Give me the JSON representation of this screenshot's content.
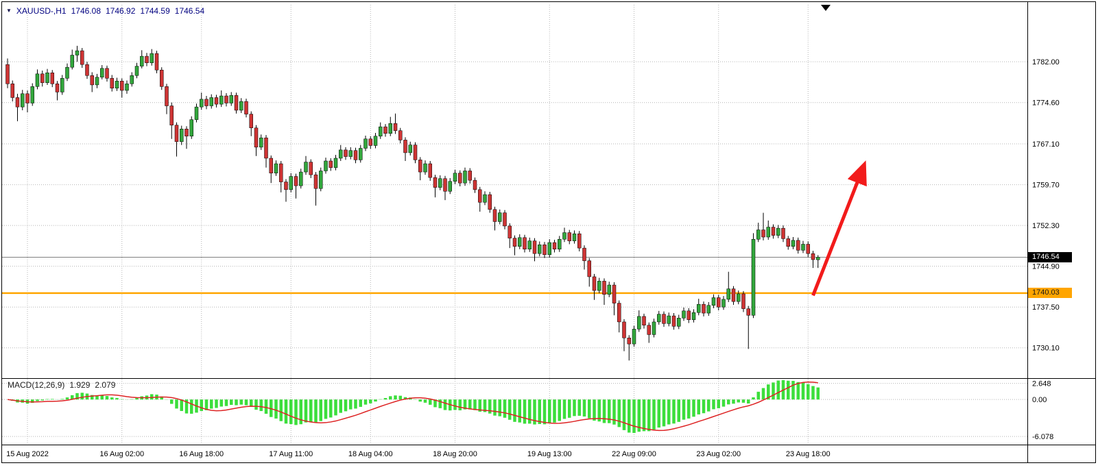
{
  "header": {
    "symbol_period": "XAUUSD-,H1",
    "open": "1746.08",
    "high": "1746.92",
    "low": "1744.59",
    "close": "1746.54"
  },
  "chart_data": {
    "type": "candlestick",
    "symbol": "XAUUSD",
    "timeframe": "H1",
    "grid": "dotted",
    "price_axis": {
      "range": [
        1724.6,
        1789.6
      ],
      "ticks": [
        {
          "text": "1782.00",
          "value": 1782.0
        },
        {
          "text": "1774.60",
          "value": 1774.6
        },
        {
          "text": "1767.10",
          "value": 1767.1
        },
        {
          "text": "1759.70",
          "value": 1759.7
        },
        {
          "text": "1752.30",
          "value": 1752.3
        },
        {
          "text": "1744.90",
          "value": 1744.9
        },
        {
          "text": "1737.50",
          "value": 1737.5
        },
        {
          "text": "1730.10",
          "value": 1730.1
        }
      ]
    },
    "current_price": {
      "text": "1746.54",
      "value": 1746.54
    },
    "hline": {
      "text": "1740.03",
      "value": 1740.03,
      "color": "#FFA500"
    },
    "x_labels": [
      {
        "text": "15 Aug 2022",
        "bar": 4
      },
      {
        "text": "16 Aug 02:00",
        "bar": 23
      },
      {
        "text": "16 Aug 18:00",
        "bar": 39
      },
      {
        "text": "17 Aug 11:00",
        "bar": 57
      },
      {
        "text": "18 Aug 04:00",
        "bar": 73
      },
      {
        "text": "18 Aug 20:00",
        "bar": 90
      },
      {
        "text": "19 Aug 13:00",
        "bar": 109
      },
      {
        "text": "22 Aug 09:00",
        "bar": 126
      },
      {
        "text": "23 Aug 02:00",
        "bar": 143
      },
      {
        "text": "23 Aug 18:00",
        "bar": 161
      }
    ],
    "macd": {
      "title": "MACD(12,26,9)",
      "main_value": "1.929",
      "signal_value": "2.079",
      "params": {
        "fast": 12,
        "slow": 26,
        "signal": 9
      },
      "range": [
        -7.3,
        3.4
      ],
      "ticks": [
        {
          "text": "2.648",
          "value": 2.648
        },
        {
          "text": "0.00",
          "value": 0
        },
        {
          "text": "-6.078",
          "value": -6.078
        }
      ]
    },
    "annotation_arrow": {
      "from_bar": 162,
      "from_price": 1739.6,
      "to_bar": 171.5,
      "to_price": 1761.5,
      "color": "#F21B1B"
    },
    "colors": {
      "bull": "#32A63C",
      "bear": "#CE3434",
      "wick": "#000000",
      "grid": "#B4B4B4",
      "macd_hist": "#3CDE3C",
      "macd_signal": "#DD2222",
      "current_line": "#808080"
    },
    "candles": [
      [
        1781.5,
        1782.6,
        1777.2,
        1778.0
      ],
      [
        1778.0,
        1778.6,
        1774.8,
        1775.5
      ],
      [
        1775.5,
        1776.2,
        1771.2,
        1773.8
      ],
      [
        1773.8,
        1776.9,
        1773.2,
        1776.2
      ],
      [
        1776.2,
        1776.8,
        1772.8,
        1774.5
      ],
      [
        1774.5,
        1778.1,
        1774.0,
        1777.5
      ],
      [
        1777.5,
        1780.6,
        1777.0,
        1779.8
      ],
      [
        1779.8,
        1780.4,
        1777.5,
        1778.2
      ],
      [
        1778.2,
        1780.7,
        1777.8,
        1780.0
      ],
      [
        1780.0,
        1780.5,
        1777.4,
        1778.0
      ],
      [
        1778.0,
        1778.5,
        1775.0,
        1776.5
      ],
      [
        1776.5,
        1779.6,
        1776.0,
        1779.0
      ],
      [
        1779.0,
        1781.7,
        1778.5,
        1781.0
      ],
      [
        1781.0,
        1784.2,
        1780.6,
        1783.2
      ],
      [
        1783.2,
        1784.9,
        1782.0,
        1784.0
      ],
      [
        1784.0,
        1784.5,
        1780.9,
        1781.5
      ],
      [
        1781.5,
        1782.0,
        1778.9,
        1779.5
      ],
      [
        1779.5,
        1780.1,
        1776.5,
        1777.8
      ],
      [
        1777.8,
        1779.8,
        1777.2,
        1779.2
      ],
      [
        1779.2,
        1781.4,
        1778.8,
        1780.8
      ],
      [
        1780.8,
        1781.3,
        1778.4,
        1779.0
      ],
      [
        1779.0,
        1779.6,
        1776.6,
        1777.2
      ],
      [
        1777.2,
        1779.1,
        1776.7,
        1778.5
      ],
      [
        1778.5,
        1779.0,
        1775.5,
        1776.8
      ],
      [
        1776.8,
        1778.6,
        1776.2,
        1778.0
      ],
      [
        1778.0,
        1780.1,
        1777.5,
        1779.5
      ],
      [
        1779.5,
        1781.8,
        1779.0,
        1781.2
      ],
      [
        1781.2,
        1784.1,
        1780.8,
        1783.0
      ],
      [
        1783.0,
        1783.6,
        1781.2,
        1781.8
      ],
      [
        1781.8,
        1784.3,
        1781.3,
        1783.5
      ],
      [
        1783.5,
        1784.0,
        1779.9,
        1780.5
      ],
      [
        1780.5,
        1781.0,
        1776.9,
        1777.5
      ],
      [
        1777.5,
        1778.0,
        1772.5,
        1774.0
      ],
      [
        1774.0,
        1774.6,
        1768.0,
        1770.5
      ],
      [
        1770.5,
        1771.0,
        1764.8,
        1767.5
      ],
      [
        1767.5,
        1770.4,
        1766.9,
        1769.8
      ],
      [
        1769.8,
        1770.3,
        1766.2,
        1768.5
      ],
      [
        1768.5,
        1772.1,
        1768.0,
        1771.5
      ],
      [
        1771.5,
        1774.4,
        1771.0,
        1773.8
      ],
      [
        1773.8,
        1776.4,
        1773.3,
        1775.2
      ],
      [
        1775.2,
        1775.8,
        1773.4,
        1774.0
      ],
      [
        1774.0,
        1776.1,
        1773.5,
        1775.5
      ],
      [
        1775.5,
        1776.0,
        1773.7,
        1774.3
      ],
      [
        1774.3,
        1776.8,
        1773.8,
        1775.8
      ],
      [
        1775.8,
        1776.3,
        1773.9,
        1774.5
      ],
      [
        1774.5,
        1776.5,
        1774.0,
        1775.9
      ],
      [
        1775.9,
        1776.4,
        1772.6,
        1773.2
      ],
      [
        1773.2,
        1775.4,
        1772.7,
        1774.8
      ],
      [
        1774.8,
        1775.3,
        1771.9,
        1772.5
      ],
      [
        1772.5,
        1773.0,
        1768.5,
        1770.0
      ],
      [
        1770.0,
        1770.5,
        1764.9,
        1766.5
      ],
      [
        1766.5,
        1768.8,
        1766.0,
        1768.2
      ],
      [
        1768.2,
        1768.7,
        1762.8,
        1764.5
      ],
      [
        1764.5,
        1765.0,
        1760.0,
        1761.8
      ],
      [
        1761.8,
        1764.1,
        1761.3,
        1763.5
      ],
      [
        1763.5,
        1764.0,
        1758.3,
        1760.2
      ],
      [
        1760.2,
        1760.7,
        1756.6,
        1758.8
      ],
      [
        1758.8,
        1761.8,
        1758.3,
        1761.2
      ],
      [
        1761.2,
        1761.7,
        1757.2,
        1759.5
      ],
      [
        1759.5,
        1762.6,
        1759.0,
        1762.0
      ],
      [
        1762.0,
        1764.9,
        1761.5,
        1763.8
      ],
      [
        1763.8,
        1764.3,
        1760.9,
        1761.5
      ],
      [
        1761.5,
        1762.0,
        1755.9,
        1759.0
      ],
      [
        1759.0,
        1762.8,
        1758.5,
        1762.2
      ],
      [
        1762.2,
        1764.6,
        1761.7,
        1764.0
      ],
      [
        1764.0,
        1764.5,
        1762.2,
        1762.8
      ],
      [
        1762.8,
        1765.1,
        1762.3,
        1764.5
      ],
      [
        1764.5,
        1766.9,
        1764.0,
        1766.0
      ],
      [
        1766.0,
        1766.5,
        1764.2,
        1764.8
      ],
      [
        1764.8,
        1766.5,
        1764.3,
        1765.9
      ],
      [
        1765.9,
        1766.4,
        1763.6,
        1764.2
      ],
      [
        1764.2,
        1766.9,
        1763.7,
        1766.3
      ],
      [
        1766.3,
        1768.6,
        1765.8,
        1768.0
      ],
      [
        1768.0,
        1768.5,
        1766.2,
        1766.8
      ],
      [
        1766.8,
        1769.1,
        1766.3,
        1768.5
      ],
      [
        1768.5,
        1771.0,
        1768.0,
        1770.2
      ],
      [
        1770.2,
        1770.7,
        1768.4,
        1769.0
      ],
      [
        1769.0,
        1772.0,
        1768.5,
        1770.8
      ],
      [
        1770.8,
        1772.6,
        1768.9,
        1769.5
      ],
      [
        1769.5,
        1770.0,
        1767.2,
        1767.8
      ],
      [
        1767.8,
        1768.3,
        1764.0,
        1765.5
      ],
      [
        1765.5,
        1767.5,
        1765.0,
        1766.9
      ],
      [
        1766.9,
        1767.4,
        1763.6,
        1764.2
      ],
      [
        1764.2,
        1764.7,
        1760.5,
        1762.0
      ],
      [
        1762.0,
        1764.1,
        1761.5,
        1763.5
      ],
      [
        1763.5,
        1764.0,
        1760.4,
        1761.0
      ],
      [
        1761.0,
        1761.5,
        1757.4,
        1759.2
      ],
      [
        1759.2,
        1761.4,
        1758.7,
        1760.8
      ],
      [
        1760.8,
        1761.3,
        1756.9,
        1758.5
      ],
      [
        1758.5,
        1760.9,
        1758.0,
        1760.3
      ],
      [
        1760.3,
        1762.4,
        1759.8,
        1761.8
      ],
      [
        1761.8,
        1762.3,
        1759.4,
        1760.0
      ],
      [
        1760.0,
        1762.8,
        1759.5,
        1762.2
      ],
      [
        1762.2,
        1762.7,
        1759.9,
        1760.5
      ],
      [
        1760.5,
        1761.0,
        1758.2,
        1758.8
      ],
      [
        1758.8,
        1759.3,
        1754.8,
        1756.5
      ],
      [
        1756.5,
        1758.5,
        1756.0,
        1757.9
      ],
      [
        1757.9,
        1758.4,
        1754.6,
        1755.2
      ],
      [
        1755.2,
        1755.7,
        1751.4,
        1753.0
      ],
      [
        1753.0,
        1755.2,
        1752.5,
        1754.6
      ],
      [
        1754.6,
        1755.1,
        1751.6,
        1752.2
      ],
      [
        1752.2,
        1752.7,
        1748.2,
        1750.0
      ],
      [
        1750.0,
        1750.5,
        1746.9,
        1748.5
      ],
      [
        1748.5,
        1750.7,
        1748.0,
        1750.1
      ],
      [
        1750.1,
        1750.6,
        1747.4,
        1748.0
      ],
      [
        1748.0,
        1750.1,
        1747.5,
        1749.5
      ],
      [
        1749.5,
        1750.0,
        1745.8,
        1747.2
      ],
      [
        1747.2,
        1749.4,
        1746.7,
        1748.8
      ],
      [
        1748.8,
        1749.3,
        1746.4,
        1747.0
      ],
      [
        1747.0,
        1749.8,
        1746.5,
        1749.2
      ],
      [
        1749.2,
        1749.7,
        1747.4,
        1748.0
      ],
      [
        1748.0,
        1750.4,
        1747.5,
        1749.8
      ],
      [
        1749.8,
        1751.9,
        1749.3,
        1751.0
      ],
      [
        1751.0,
        1751.5,
        1748.9,
        1749.5
      ],
      [
        1749.5,
        1751.4,
        1749.0,
        1750.8
      ],
      [
        1750.8,
        1751.3,
        1747.6,
        1748.2
      ],
      [
        1748.2,
        1748.7,
        1744.3,
        1745.9
      ],
      [
        1745.9,
        1746.4,
        1741.2,
        1743.0
      ],
      [
        1743.0,
        1743.5,
        1738.8,
        1740.5
      ],
      [
        1740.5,
        1742.8,
        1740.0,
        1742.2
      ],
      [
        1742.2,
        1742.7,
        1737.9,
        1739.8
      ],
      [
        1739.8,
        1742.1,
        1739.3,
        1741.5
      ],
      [
        1741.5,
        1742.0,
        1736.0,
        1738.2
      ],
      [
        1738.2,
        1738.7,
        1732.9,
        1734.8
      ],
      [
        1734.8,
        1735.3,
        1729.5,
        1731.9
      ],
      [
        1731.9,
        1732.4,
        1727.8,
        1730.8
      ],
      [
        1730.8,
        1734.1,
        1730.3,
        1733.5
      ],
      [
        1733.5,
        1736.9,
        1733.0,
        1735.8
      ],
      [
        1735.8,
        1736.3,
        1733.6,
        1734.2
      ],
      [
        1734.2,
        1734.7,
        1731.0,
        1732.5
      ],
      [
        1732.5,
        1735.4,
        1732.0,
        1734.8
      ],
      [
        1734.8,
        1736.8,
        1734.3,
        1736.2
      ],
      [
        1736.2,
        1736.7,
        1733.9,
        1734.5
      ],
      [
        1734.5,
        1736.5,
        1734.0,
        1735.9
      ],
      [
        1735.9,
        1736.4,
        1733.4,
        1734.0
      ],
      [
        1734.0,
        1736.1,
        1733.5,
        1735.5
      ],
      [
        1735.5,
        1737.4,
        1735.0,
        1736.8
      ],
      [
        1736.8,
        1737.3,
        1734.6,
        1735.2
      ],
      [
        1735.2,
        1737.1,
        1734.7,
        1736.5
      ],
      [
        1736.5,
        1739.0,
        1736.0,
        1738.0
      ],
      [
        1738.0,
        1738.5,
        1735.8,
        1736.4
      ],
      [
        1736.4,
        1738.4,
        1735.9,
        1737.8
      ],
      [
        1737.8,
        1739.8,
        1737.3,
        1739.2
      ],
      [
        1739.2,
        1739.7,
        1736.9,
        1737.5
      ],
      [
        1737.5,
        1739.5,
        1737.0,
        1738.9
      ],
      [
        1738.9,
        1743.9,
        1738.4,
        1740.8
      ],
      [
        1740.8,
        1741.3,
        1737.9,
        1738.5
      ],
      [
        1738.5,
        1740.5,
        1738.0,
        1739.9
      ],
      [
        1739.9,
        1740.4,
        1736.6,
        1737.2
      ],
      [
        1737.2,
        1737.7,
        1729.9,
        1736.0
      ],
      [
        1736.0,
        1750.9,
        1735.5,
        1749.8
      ],
      [
        1749.8,
        1752.8,
        1749.3,
        1751.5
      ],
      [
        1751.5,
        1754.6,
        1749.6,
        1750.2
      ],
      [
        1750.2,
        1753.2,
        1749.7,
        1752.0
      ],
      [
        1752.0,
        1752.5,
        1749.9,
        1750.5
      ],
      [
        1750.5,
        1752.4,
        1750.0,
        1751.8
      ],
      [
        1751.8,
        1752.3,
        1749.3,
        1749.9
      ],
      [
        1749.9,
        1750.4,
        1747.9,
        1748.5
      ],
      [
        1748.5,
        1750.2,
        1748.0,
        1749.6
      ],
      [
        1749.6,
        1750.1,
        1747.2,
        1747.8
      ],
      [
        1747.8,
        1749.5,
        1747.3,
        1748.9
      ],
      [
        1748.9,
        1749.4,
        1746.6,
        1747.2
      ],
      [
        1747.2,
        1747.7,
        1744.6,
        1746.1
      ],
      [
        1746.08,
        1746.92,
        1744.59,
        1746.54
      ]
    ]
  }
}
